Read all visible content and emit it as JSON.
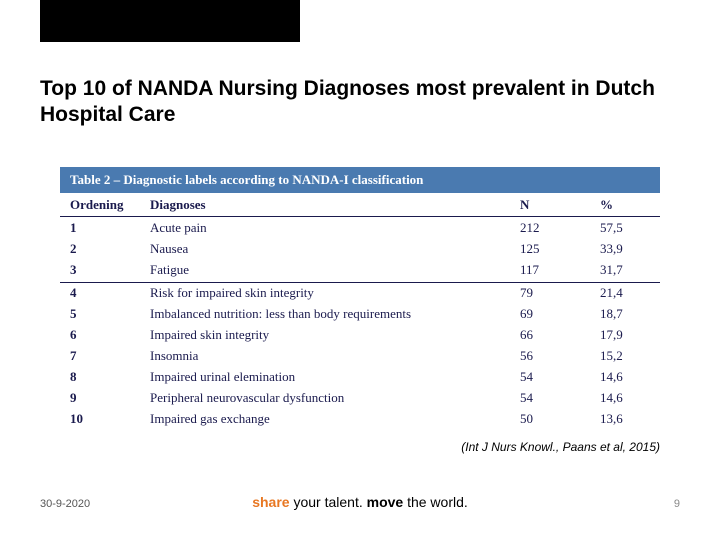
{
  "title": "Top 10 of NANDA Nursing Diagnoses most prevalent in Dutch Hospital Care",
  "table": {
    "caption": "Table 2 – Diagnostic labels according to NANDA-I classification",
    "headers": {
      "ordening": "Ordening",
      "diagnoses": "Diagnoses",
      "n": "N",
      "pct": "%"
    },
    "rows": [
      {
        "ord": "1",
        "diag": "Acute pain",
        "n": "212",
        "pct": "57,5"
      },
      {
        "ord": "2",
        "diag": "Nausea",
        "n": "125",
        "pct": "33,9"
      },
      {
        "ord": "3",
        "diag": "Fatigue",
        "n": "117",
        "pct": "31,7"
      },
      {
        "ord": "4",
        "diag": "Risk for impaired skin integrity",
        "n": "79",
        "pct": "21,4"
      },
      {
        "ord": "5",
        "diag": "Imbalanced nutrition: less than body requirements",
        "n": "69",
        "pct": "18,7"
      },
      {
        "ord": "6",
        "diag": "Impaired skin integrity",
        "n": "66",
        "pct": "17,9"
      },
      {
        "ord": "7",
        "diag": "Insomnia",
        "n": "56",
        "pct": "15,2"
      },
      {
        "ord": "8",
        "diag": "Impaired urinal elemination",
        "n": "54",
        "pct": "14,6"
      },
      {
        "ord": "9",
        "diag": "Peripheral neurovascular dysfunction",
        "n": "54",
        "pct": "14,6"
      },
      {
        "ord": "10",
        "diag": "Impaired gas exchange",
        "n": "50",
        "pct": "13,6"
      }
    ],
    "divider_after_index": 2
  },
  "citation": "(Int J Nurs Knowl., Paans et al, 2015)",
  "footer": {
    "date": "30-9-2020",
    "tagline": {
      "share": "share",
      "talent": " your talent.",
      "move": " move",
      "world": " the world."
    },
    "page": "9"
  },
  "colors": {
    "accent_orange": "#e87722",
    "table_header_bg": "#4a7ab0",
    "table_text": "#1a1a4d"
  }
}
